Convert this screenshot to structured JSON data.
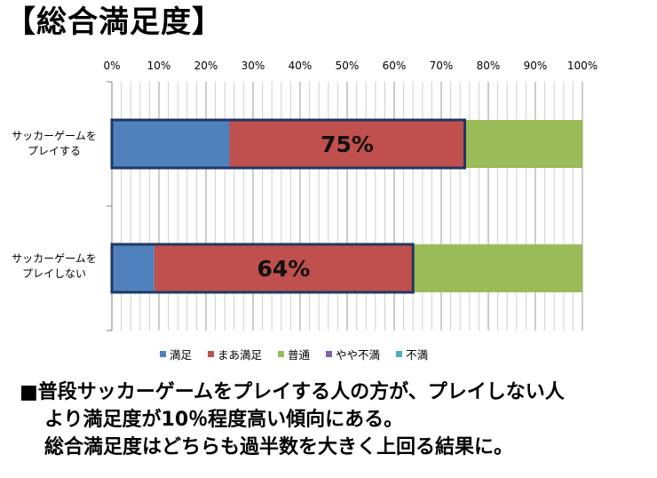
{
  "title": "【総合満足度】",
  "chart_data": {
    "type": "bar",
    "orientation": "horizontal",
    "stacked": "percent",
    "xlim": [
      0,
      100
    ],
    "x_ticks": [
      "0%",
      "10%",
      "20%",
      "30%",
      "40%",
      "50%",
      "60%",
      "70%",
      "80%",
      "90%",
      "100%"
    ],
    "grid": true,
    "legend_position": "bottom",
    "categories": [
      [
        "サッカーゲームを",
        "プレイする"
      ],
      [
        "サッカーゲームを",
        "プレイしない"
      ]
    ],
    "series": [
      {
        "name": "満足",
        "color": "#4f81bd",
        "values": [
          25,
          9
        ]
      },
      {
        "name": "まあ満足",
        "color": "#c0504d",
        "values": [
          50,
          55
        ]
      },
      {
        "name": "普通",
        "color": "#9bbb59",
        "values": [
          25,
          36
        ]
      },
      {
        "name": "やや不満",
        "color": "#8064a2",
        "values": [
          0,
          0
        ]
      },
      {
        "name": "不満",
        "color": "#4bacc6",
        "values": [
          0,
          0
        ]
      }
    ],
    "annotations": [
      "75%",
      "64%"
    ],
    "highlight_color": "#1f3864"
  },
  "summary": [
    "■普段サッカーゲームをプレイする人の方が、プレイしない人",
    "より満足度が10％程度高い傾向にある。",
    "総合満足度はどちらも過半数を大きく上回る結果に。"
  ]
}
